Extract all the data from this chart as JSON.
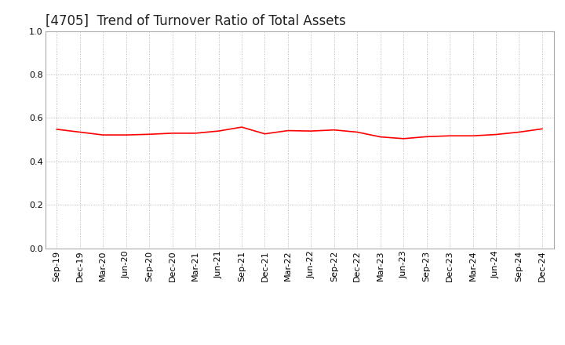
{
  "title": "[4705]  Trend of Turnover Ratio of Total Assets",
  "x_labels": [
    "Sep-19",
    "Dec-19",
    "Mar-20",
    "Jun-20",
    "Sep-20",
    "Dec-20",
    "Mar-21",
    "Jun-21",
    "Sep-21",
    "Dec-21",
    "Mar-22",
    "Jun-22",
    "Sep-22",
    "Dec-22",
    "Mar-23",
    "Jun-23",
    "Sep-23",
    "Dec-23",
    "Mar-24",
    "Jun-24",
    "Sep-24",
    "Dec-24"
  ],
  "y_values": [
    0.548,
    0.535,
    0.522,
    0.522,
    0.525,
    0.53,
    0.53,
    0.54,
    0.558,
    0.527,
    0.542,
    0.54,
    0.545,
    0.535,
    0.513,
    0.505,
    0.514,
    0.518,
    0.518,
    0.524,
    0.535,
    0.55
  ],
  "line_color": "#FF0000",
  "line_width": 1.2,
  "ylim": [
    0.0,
    1.0
  ],
  "yticks": [
    0.0,
    0.2,
    0.4,
    0.6,
    0.8,
    1.0
  ],
  "background_color": "#FFFFFF",
  "grid_color": "#AAAAAA",
  "title_fontsize": 12,
  "tick_fontsize": 8
}
